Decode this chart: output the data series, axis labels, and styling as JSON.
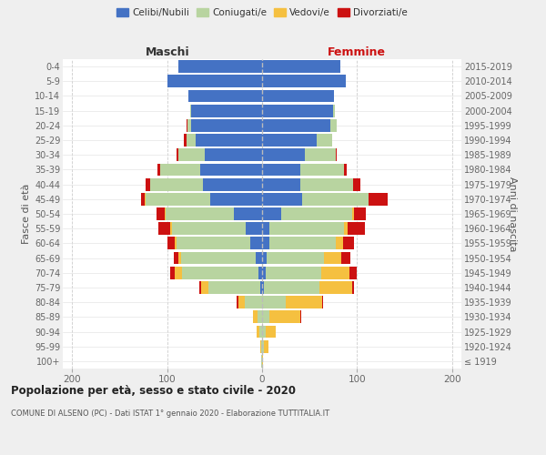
{
  "age_groups": [
    "100+",
    "95-99",
    "90-94",
    "85-89",
    "80-84",
    "75-79",
    "70-74",
    "65-69",
    "60-64",
    "55-59",
    "50-54",
    "45-49",
    "40-44",
    "35-39",
    "30-34",
    "25-29",
    "20-24",
    "15-19",
    "10-14",
    "5-9",
    "0-4"
  ],
  "birth_years": [
    "≤ 1919",
    "1920-1924",
    "1925-1929",
    "1930-1934",
    "1935-1939",
    "1940-1944",
    "1945-1949",
    "1950-1954",
    "1955-1959",
    "1960-1964",
    "1965-1969",
    "1970-1974",
    "1975-1979",
    "1980-1984",
    "1985-1989",
    "1990-1994",
    "1995-1999",
    "2000-2004",
    "2005-2009",
    "2010-2014",
    "2015-2019"
  ],
  "maschi": {
    "celibi": [
      0,
      0,
      0,
      0,
      0,
      2,
      4,
      7,
      12,
      17,
      30,
      55,
      62,
      65,
      60,
      70,
      75,
      75,
      78,
      100,
      88
    ],
    "coniugati": [
      1,
      1,
      3,
      5,
      18,
      55,
      80,
      78,
      78,
      78,
      72,
      68,
      56,
      42,
      28,
      10,
      4,
      1,
      0,
      0,
      0
    ],
    "vedovi": [
      0,
      1,
      3,
      5,
      7,
      7,
      8,
      3,
      2,
      2,
      1,
      1,
      0,
      0,
      0,
      0,
      0,
      0,
      0,
      0,
      0
    ],
    "divorziati": [
      0,
      0,
      0,
      0,
      2,
      2,
      5,
      5,
      8,
      12,
      8,
      4,
      5,
      3,
      2,
      2,
      1,
      0,
      0,
      0,
      0
    ]
  },
  "femmine": {
    "nubili": [
      0,
      0,
      0,
      0,
      0,
      2,
      4,
      5,
      8,
      8,
      20,
      42,
      40,
      40,
      45,
      58,
      72,
      75,
      76,
      88,
      82
    ],
    "coniugate": [
      0,
      2,
      4,
      8,
      25,
      58,
      58,
      60,
      70,
      78,
      75,
      70,
      56,
      46,
      33,
      16,
      7,
      2,
      0,
      0,
      0
    ],
    "vedove": [
      1,
      5,
      10,
      32,
      38,
      35,
      30,
      18,
      7,
      4,
      2,
      0,
      0,
      0,
      0,
      0,
      0,
      0,
      0,
      0,
      0
    ],
    "divorziate": [
      0,
      0,
      0,
      1,
      1,
      2,
      8,
      10,
      12,
      18,
      12,
      20,
      8,
      3,
      1,
      0,
      0,
      0,
      0,
      0,
      0
    ]
  },
  "colors": {
    "celibi_nubili": "#4472c4",
    "coniugati": "#b8d4a0",
    "vedovi": "#f5c040",
    "divorziati": "#cc1111"
  },
  "xlim": [
    -210,
    210
  ],
  "xticks": [
    -200,
    -100,
    0,
    100,
    200
  ],
  "xticklabels": [
    "200",
    "100",
    "0",
    "100",
    "200"
  ],
  "title": "Popolazione per età, sesso e stato civile - 2020",
  "subtitle": "COMUNE DI ALSENO (PC) - Dati ISTAT 1° gennaio 2020 - Elaborazione TUTTITALIA.IT",
  "ylabel_left": "Fasce di età",
  "ylabel_right": "Anni di nascita",
  "header_left": "Maschi",
  "header_right": "Femmine",
  "legend_labels": [
    "Celibi/Nubili",
    "Coniugati/e",
    "Vedovi/e",
    "Divorziati/e"
  ],
  "bg_color": "#efefef",
  "plot_bg": "#ffffff"
}
